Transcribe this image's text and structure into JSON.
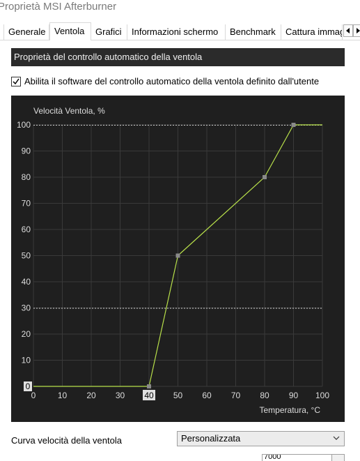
{
  "window": {
    "title": "Proprietà MSI Afterburner"
  },
  "tabs": [
    {
      "label": "Generale",
      "active": false
    },
    {
      "label": "Ventola",
      "active": true
    },
    {
      "label": "Grafici",
      "active": false
    },
    {
      "label": "Informazioni schermo",
      "active": false
    },
    {
      "label": "Benchmark",
      "active": false
    },
    {
      "label": "Cattura immag",
      "active": false
    }
  ],
  "tab_scroll": {
    "left_icon": "triangle-left-icon",
    "right_icon": "triangle-right-icon"
  },
  "section": {
    "title": "Proprietà del controllo automatico della ventola"
  },
  "auto_fan": {
    "label": "Abilita il software del controllo automatico della ventola definito dall'utente",
    "checked": true
  },
  "chart_data": {
    "type": "line",
    "ylabel": "Velocità Ventola, %",
    "xlabel": "Temperatura, °C",
    "xlim": [
      0,
      100
    ],
    "ylim": [
      0,
      100
    ],
    "xticks": [
      0,
      10,
      20,
      30,
      40,
      50,
      60,
      70,
      80,
      90,
      100
    ],
    "yticks": [
      0,
      10,
      20,
      30,
      40,
      50,
      60,
      70,
      80,
      90,
      100
    ],
    "grid": true,
    "highlighted_x_tick": 40,
    "highlighted_y_tick": 0,
    "reference_lines_y": [
      100,
      30
    ],
    "series": [
      {
        "x": [
          0,
          40,
          50,
          80,
          90,
          100
        ],
        "y": [
          0,
          0,
          50,
          80,
          100,
          100
        ]
      }
    ],
    "control_points": [
      {
        "x": 40,
        "y": 0
      },
      {
        "x": 50,
        "y": 50
      },
      {
        "x": 80,
        "y": 80
      },
      {
        "x": 90,
        "y": 100
      }
    ],
    "colors": {
      "background": "#1f1f1f",
      "grid": "#3a3a3a",
      "line": "#b8e04a",
      "point": "#8a8a8a",
      "text": "#dcdcdc",
      "reference": "#d0d0d0"
    }
  },
  "fan_curve": {
    "label": "Curva velocità della ventola",
    "selected": "Personalizzata",
    "next_value": "7000"
  }
}
